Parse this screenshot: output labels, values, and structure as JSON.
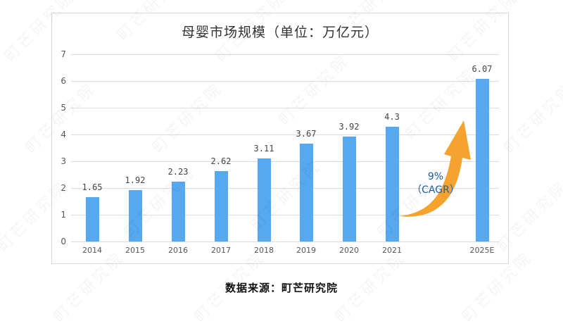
{
  "title": "母婴市场规模（单位：万亿元）",
  "source": "数据来源：町芒研究院",
  "watermark": "町芒研究院",
  "annotation": {
    "rate": "9%",
    "label": "（CAGR）"
  },
  "colors": {
    "bar": "#56a8ef",
    "arrow": "#f5a22e",
    "annotation_text": "#1f5fa8",
    "grid": "#dcdcdc"
  },
  "chart_data": {
    "type": "bar",
    "title": "母婴市场规模（单位：万亿元）",
    "xlabel": "",
    "ylabel": "",
    "categories": [
      "2014",
      "2015",
      "2016",
      "2017",
      "2018",
      "2019",
      "2020",
      "2021",
      "2025E"
    ],
    "values": [
      1.65,
      1.92,
      2.23,
      2.62,
      3.11,
      3.67,
      3.92,
      4.3,
      6.07
    ],
    "value_labels": [
      "1.65",
      "1.92",
      "2.23",
      "2.62",
      "3.11",
      "3.67",
      "3.92",
      "4.3",
      "6.07"
    ],
    "ylim": [
      0,
      7
    ],
    "yticks": [
      "0",
      "1",
      "2",
      "3",
      "4",
      "5",
      "6",
      "7"
    ],
    "grid": true,
    "legend": null,
    "annotations": [
      "9%（CAGR）growth arrow between 2021 and 2025E"
    ]
  }
}
